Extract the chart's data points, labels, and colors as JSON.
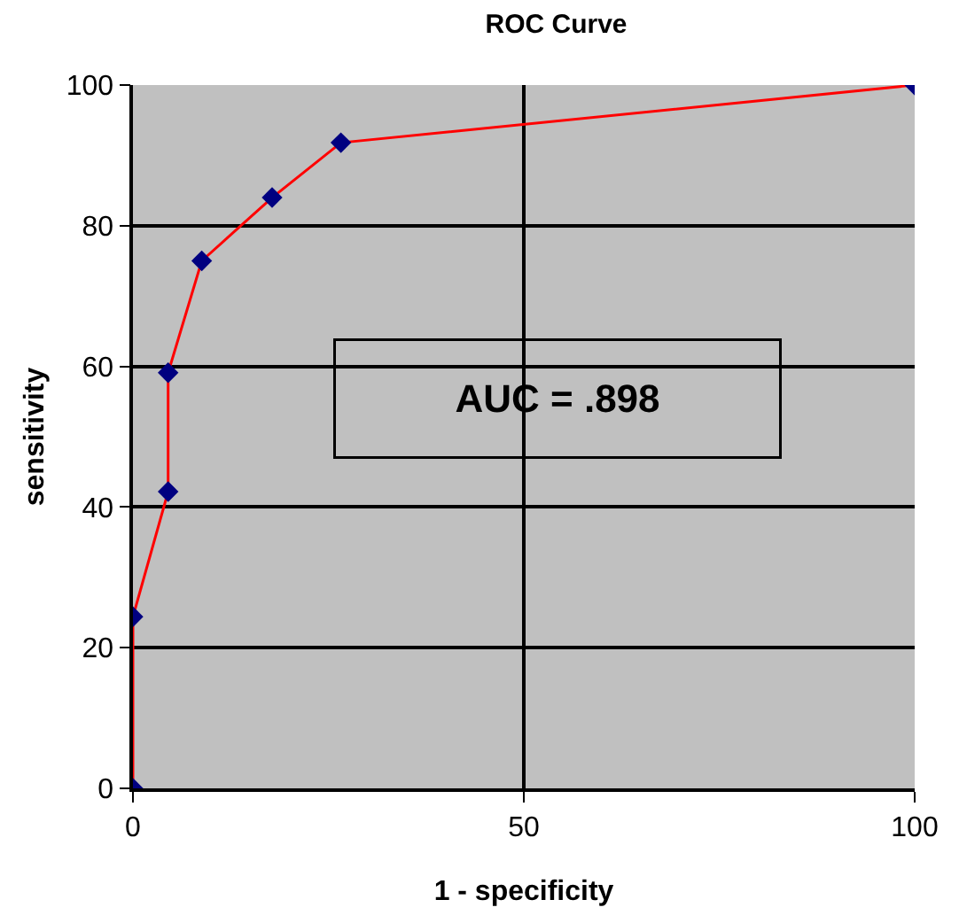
{
  "chart_data": {
    "type": "line",
    "title": "ROC Curve",
    "xlabel": "1 - specificity",
    "ylabel": "sensitivity",
    "x": [
      0,
      0,
      4.5,
      4.5,
      8.8,
      17.8,
      26.6,
      100
    ],
    "series": [
      {
        "color": "#ff0000",
        "values": [
          0,
          24.4,
          42.2,
          59.1,
          75.0,
          84.0,
          91.8,
          100
        ]
      }
    ],
    "marker": "diamond",
    "line_style": "solid",
    "xlim": [
      0,
      100
    ],
    "xticks": [
      0,
      50,
      100
    ],
    "ylim": [
      0,
      100
    ],
    "yticks": [
      0,
      20,
      40,
      60,
      80,
      100
    ],
    "grid": true,
    "annotations": [
      "AUC = .898"
    ]
  }
}
